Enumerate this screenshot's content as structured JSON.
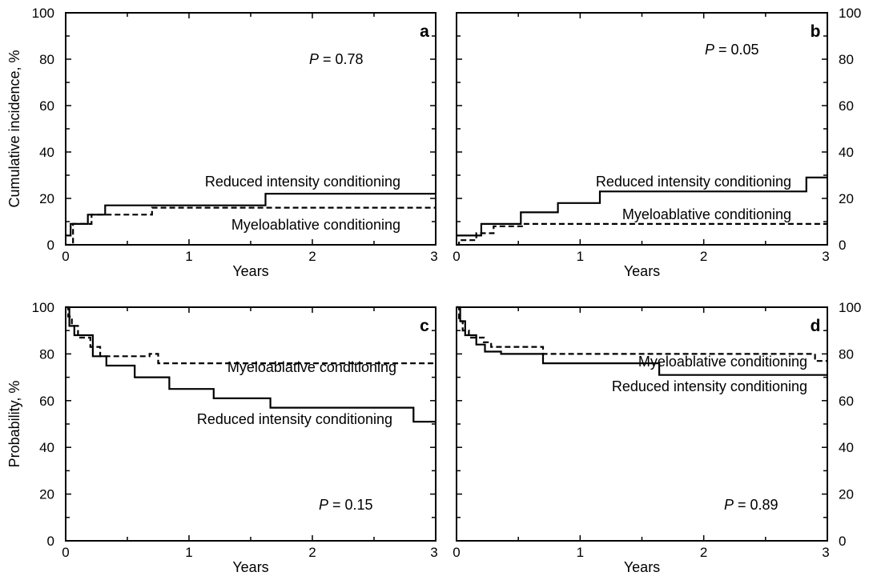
{
  "chart_data": [
    {
      "panel": "a",
      "type": "line",
      "xlabel": "Years",
      "ylabel": "Cumulative incidence, %",
      "xlim": [
        0,
        3
      ],
      "ylim": [
        0,
        100
      ],
      "xticks": [
        "0",
        "1",
        "2",
        "3"
      ],
      "yticks": [
        "0",
        "20",
        "40",
        "60",
        "80",
        "100"
      ],
      "yaxis_labels_side": "left",
      "pvalue": "0.78",
      "series": [
        {
          "name": "Reduced intensity conditioning",
          "style": "solid",
          "x": [
            0,
            0.04,
            0.04,
            0.18,
            0.18,
            0.32,
            0.32,
            1.62,
            1.62,
            3.0
          ],
          "y": [
            4,
            4,
            9,
            9,
            13,
            13,
            17,
            17,
            22,
            22
          ]
        },
        {
          "name": "Myeloablative conditioning",
          "style": "dashed",
          "x": [
            0,
            0.06,
            0.06,
            0.21,
            0.21,
            0.7,
            0.7,
            3.0
          ],
          "y": [
            0,
            0,
            9,
            9,
            13,
            13,
            16,
            16
          ]
        }
      ]
    },
    {
      "panel": "b",
      "type": "line",
      "xlabel": "Years",
      "ylabel": "",
      "xlim": [
        0,
        3
      ],
      "ylim": [
        0,
        100
      ],
      "xticks": [
        "0",
        "1",
        "2",
        "3"
      ],
      "yticks": [
        "0",
        "20",
        "40",
        "60",
        "80",
        "100"
      ],
      "yaxis_labels_side": "right",
      "pvalue": "0.05",
      "series": [
        {
          "name": "Reduced intensity conditioning",
          "style": "solid",
          "x": [
            0,
            0.2,
            0.2,
            0.52,
            0.52,
            0.82,
            0.82,
            1.16,
            1.16,
            2.83,
            2.83,
            3.0
          ],
          "y": [
            4,
            4,
            9,
            9,
            14,
            14,
            18,
            18,
            23,
            23,
            29,
            29
          ]
        },
        {
          "name": "Myeloablative conditioning",
          "style": "dashed",
          "x": [
            0,
            0.02,
            0.02,
            0.16,
            0.16,
            0.3,
            0.3,
            0.54,
            0.54,
            3.0
          ],
          "y": [
            0,
            0,
            2,
            2,
            5,
            5,
            8,
            8,
            9,
            9
          ]
        }
      ]
    },
    {
      "panel": "c",
      "type": "line",
      "xlabel": "Years",
      "ylabel": "Probability, %",
      "xlim": [
        0,
        3
      ],
      "ylim": [
        0,
        100
      ],
      "xticks": [
        "0",
        "1",
        "2",
        "3"
      ],
      "yticks": [
        "0",
        "20",
        "40",
        "60",
        "80",
        "100"
      ],
      "yaxis_labels_side": "left",
      "pvalue": "0.15",
      "series": [
        {
          "name": "Reduced intensity conditioning",
          "style": "solid",
          "x": [
            0,
            0.03,
            0.03,
            0.07,
            0.07,
            0.22,
            0.22,
            0.33,
            0.33,
            0.56,
            0.56,
            0.84,
            0.84,
            1.2,
            1.2,
            1.66,
            1.66,
            2.82,
            2.82,
            3.0
          ],
          "y": [
            100,
            100,
            92,
            92,
            88,
            88,
            79,
            79,
            75,
            75,
            70,
            70,
            65,
            65,
            61,
            61,
            57,
            57,
            51,
            51
          ]
        },
        {
          "name": "Myeloablative conditioning",
          "style": "dashed",
          "x": [
            0,
            0.02,
            0.02,
            0.05,
            0.05,
            0.1,
            0.1,
            0.2,
            0.2,
            0.28,
            0.28,
            0.68,
            0.68,
            0.75,
            0.75,
            3.0
          ],
          "y": [
            100,
            100,
            96,
            96,
            92,
            92,
            87,
            87,
            83,
            83,
            79,
            79,
            80,
            80,
            76,
            76
          ]
        }
      ]
    },
    {
      "panel": "d",
      "type": "line",
      "xlabel": "Years",
      "ylabel": "",
      "xlim": [
        0,
        3
      ],
      "ylim": [
        0,
        100
      ],
      "xticks": [
        "0",
        "1",
        "2",
        "3"
      ],
      "yticks": [
        "0",
        "20",
        "40",
        "60",
        "80",
        "100"
      ],
      "yaxis_labels_side": "right",
      "pvalue": "0.89",
      "series": [
        {
          "name": "Reduced intensity conditioning",
          "style": "solid",
          "x": [
            0,
            0.03,
            0.03,
            0.07,
            0.07,
            0.16,
            0.16,
            0.23,
            0.23,
            0.36,
            0.36,
            0.7,
            0.7,
            1.64,
            1.64,
            3.0
          ],
          "y": [
            100,
            100,
            94,
            94,
            88,
            88,
            84,
            84,
            81,
            81,
            80,
            80,
            76,
            76,
            71,
            71
          ]
        },
        {
          "name": "Myeloablative conditioning",
          "style": "dashed",
          "x": [
            0,
            0.02,
            0.02,
            0.05,
            0.05,
            0.1,
            0.1,
            0.22,
            0.22,
            0.28,
            0.28,
            0.7,
            0.7,
            2.9,
            2.9,
            3.0
          ],
          "y": [
            100,
            100,
            94,
            94,
            90,
            90,
            87,
            87,
            85,
            85,
            83,
            83,
            80,
            80,
            77,
            77
          ]
        }
      ]
    }
  ]
}
